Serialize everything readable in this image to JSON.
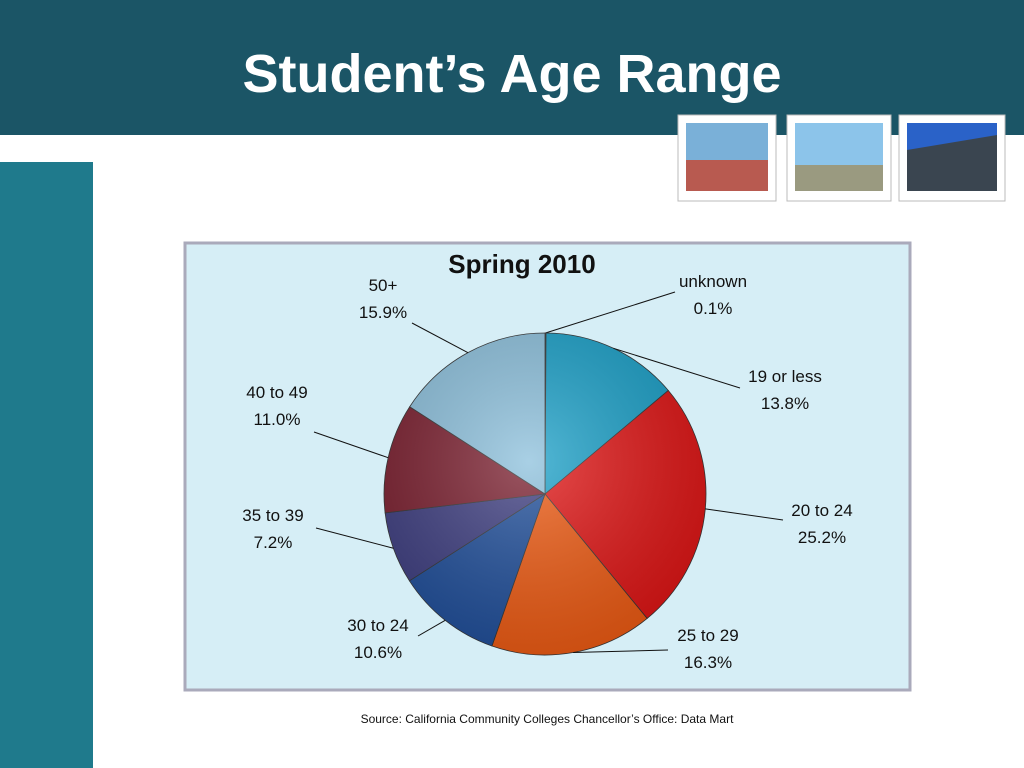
{
  "slide_title": "Student’s Age Range",
  "source": "Source: California Community Colleges Chancellor’s Office: Data Mart",
  "chart_data": {
    "type": "pie",
    "title": "Spring 2010",
    "categories": [
      "unknown",
      "19 or less",
      "20 to 24",
      "25 to 29",
      "30 to 24",
      "35 to 39",
      "40 to 49",
      "50+"
    ],
    "values": [
      0.1,
      13.8,
      25.2,
      16.3,
      10.6,
      7.2,
      11.0,
      15.9
    ],
    "value_labels": [
      "0.1%",
      "13.8%",
      "25.2%",
      "16.3%",
      "10.6%",
      "7.2%",
      "11.0%",
      "15.9%"
    ],
    "colors": [
      "#2a8fb8",
      "#1aa0c8",
      "#e01414",
      "#ee5a12",
      "#1f4e9a",
      "#3d3d80",
      "#7a1e2e",
      "#8cc0dc"
    ]
  }
}
